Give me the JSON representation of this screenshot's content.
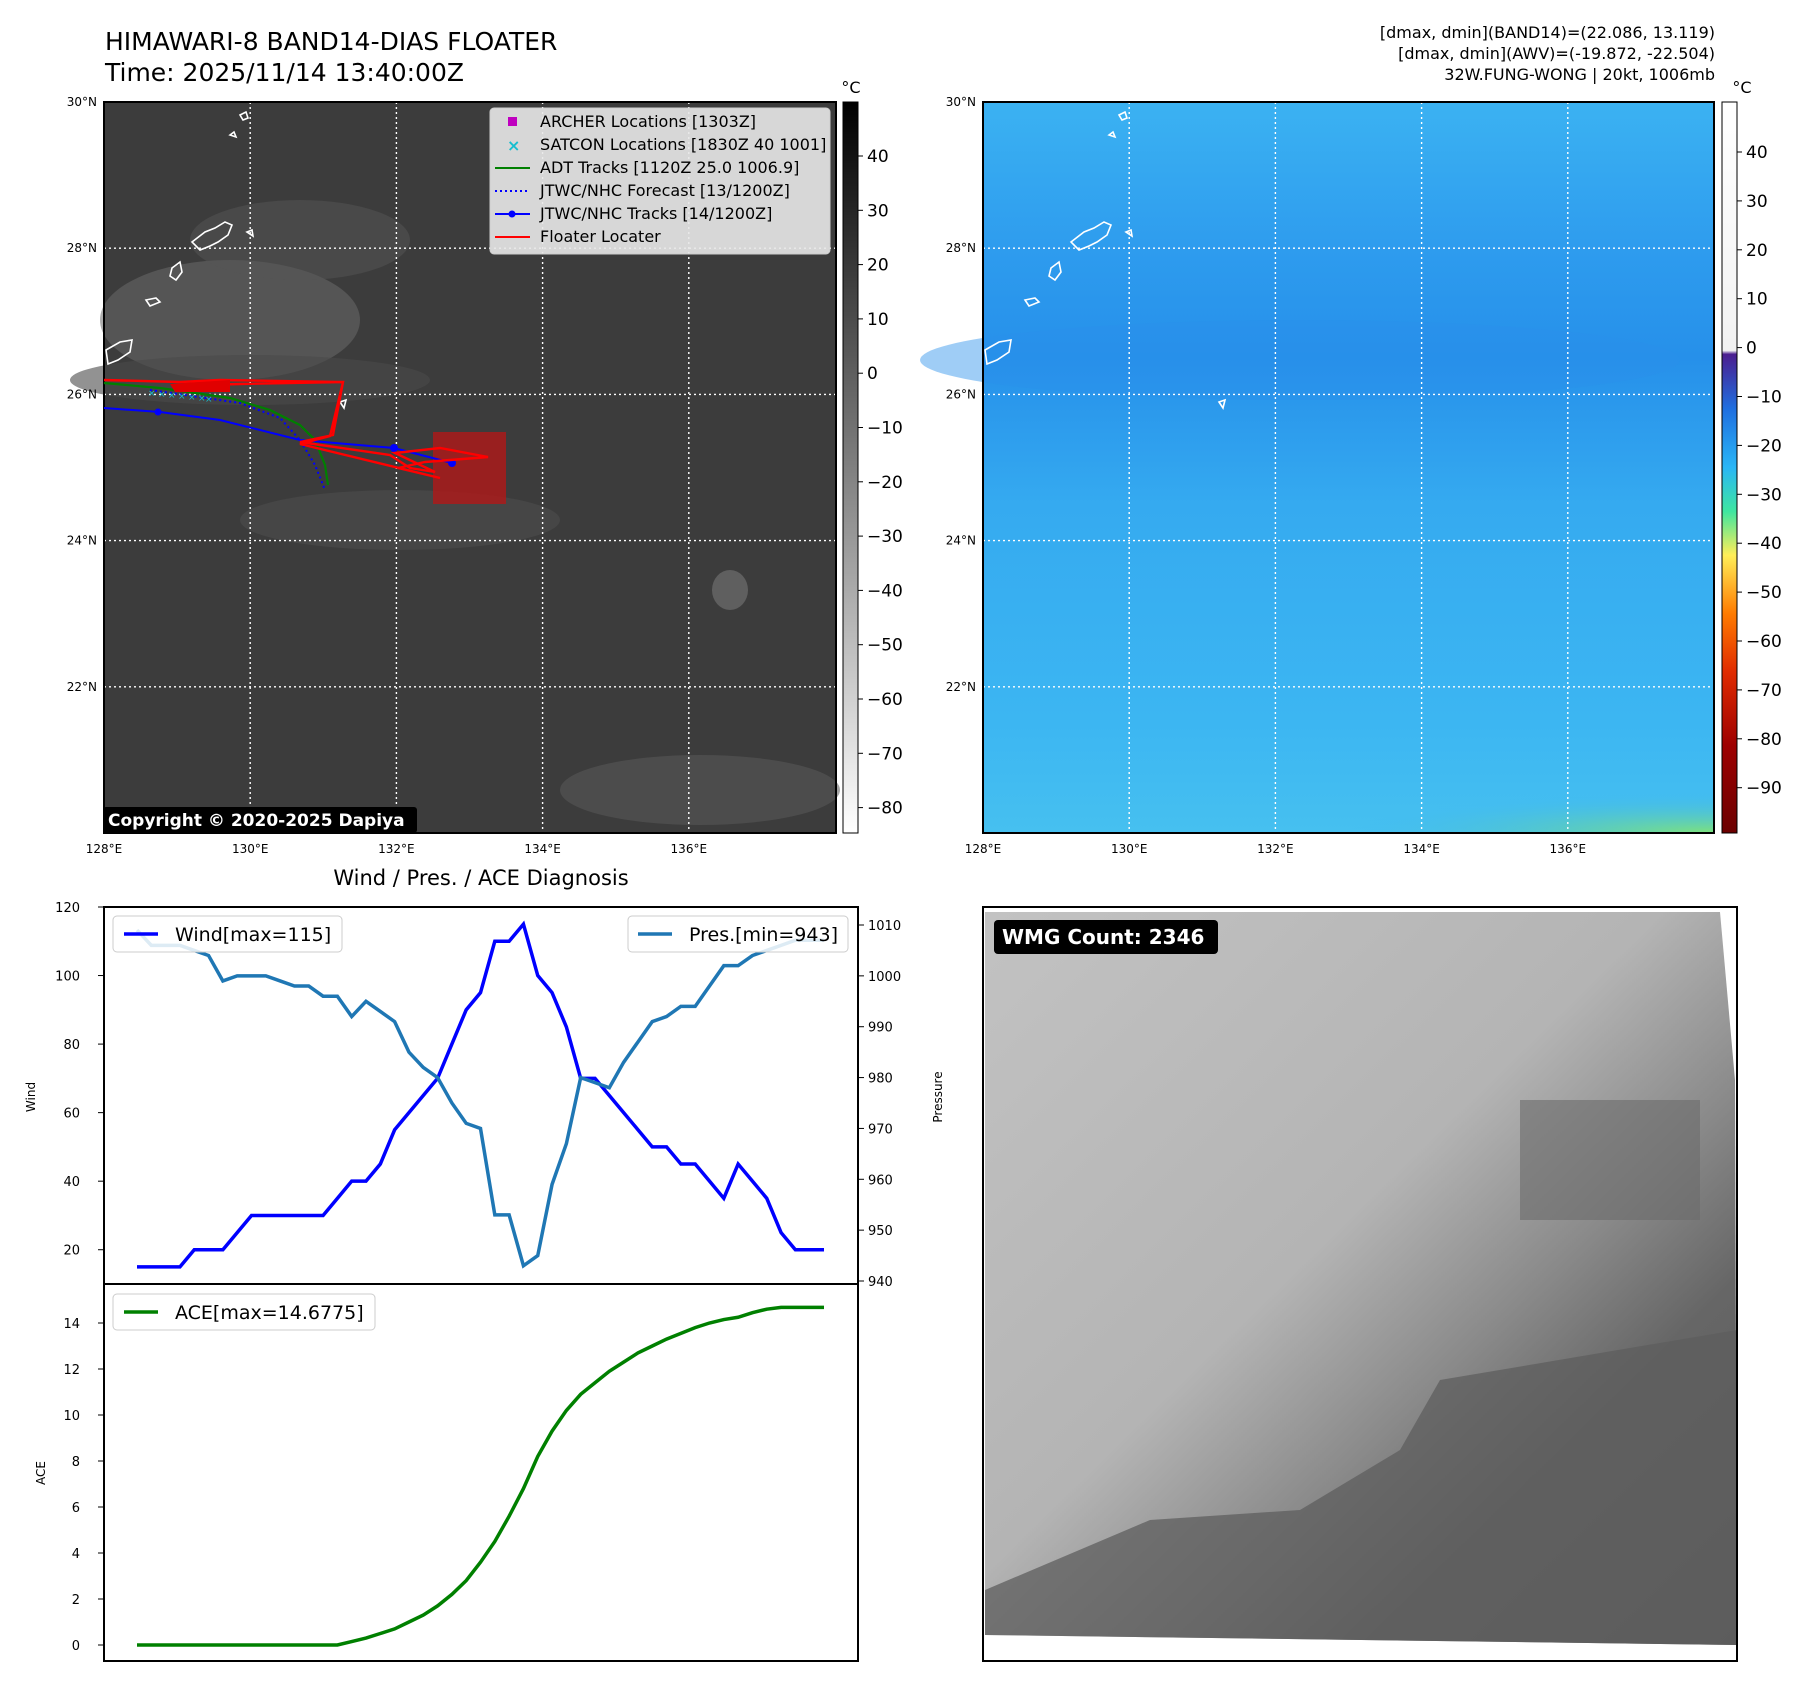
{
  "header": {
    "title_line1": "HIMAWARI-8 BAND14-DIAS FLOATER",
    "title_line2": "Time: 2025/11/14 13:40:00Z",
    "info_line1": "[dmax, dmin](BAND14)=(22.086, 13.119)",
    "info_line2": "[dmax, dmin](AWV)=(-19.872, -22.504)",
    "info_line3": "32W.FUNG-WONG | 20kt, 1006mb"
  },
  "maps": {
    "lat_labels": [
      "30°N",
      "28°N",
      "26°N",
      "24°N",
      "22°N"
    ],
    "lon_labels": [
      "128°E",
      "130°E",
      "132°E",
      "134°E",
      "136°E"
    ],
    "lat_range": [
      20,
      30
    ],
    "lon_range": [
      128,
      138
    ],
    "copyright": "Copyright © 2020-2025 Dapiya",
    "legend": [
      {
        "label": "ARCHER Locations [1303Z]",
        "color": "#bf00bf",
        "kind": "square"
      },
      {
        "label": "SATCON Locations [1830Z 40 1001]",
        "color": "#17becf",
        "kind": "x"
      },
      {
        "label": "ADT Tracks [1120Z 25.0 1006.9]",
        "color": "#008000",
        "kind": "line"
      },
      {
        "label": "JTWC/NHC Forecast [13/1200Z]",
        "color": "#0000ff",
        "kind": "dotted"
      },
      {
        "label": "JTWC/NHC Tracks [14/1200Z]",
        "color": "#0000ff",
        "kind": "line-dot"
      },
      {
        "label": "Floater Locater",
        "color": "#ff0000",
        "kind": "line"
      }
    ],
    "cbar_left": {
      "unit": "°C",
      "ticks": [
        "40",
        "30",
        "20",
        "10",
        "0",
        "−10",
        "−20",
        "−30",
        "−40",
        "−50",
        "−60",
        "−70",
        "−80"
      ]
    },
    "cbar_right": {
      "unit": "°C",
      "ticks": [
        "40",
        "30",
        "20",
        "10",
        "0",
        "−10",
        "−20",
        "−30",
        "−40",
        "−50",
        "−60",
        "−70",
        "−80",
        "−90"
      ]
    },
    "colors": {
      "ir_bg": "#3c3c3c",
      "awv_bg": "#3bb0f0",
      "awv_dark": "#2a90ea"
    }
  },
  "wmg": {
    "label": "WMG Count: 2346"
  },
  "chart_data": [
    {
      "type": "line",
      "title": "Wind / Pres. / ACE Diagnosis",
      "ylabel": "Wind",
      "ylabel_right": "Pressure",
      "ylim": [
        10,
        120
      ],
      "ylim_right": [
        940,
        1010
      ],
      "yticks": [
        "20",
        "40",
        "60",
        "80",
        "100",
        "120"
      ],
      "yticks_right": [
        "940",
        "950",
        "960",
        "970",
        "980",
        "990",
        "1000",
        "1010"
      ],
      "series": [
        {
          "name": "Wind[max=115]",
          "color": "#0000ff",
          "values": [
            15,
            15,
            15,
            15,
            20,
            20,
            20,
            25,
            30,
            30,
            30,
            30,
            30,
            30,
            35,
            40,
            40,
            45,
            55,
            60,
            65,
            70,
            80,
            90,
            95,
            110,
            110,
            115,
            100,
            95,
            85,
            70,
            70,
            65,
            60,
            55,
            50,
            50,
            45,
            45,
            40,
            35,
            45,
            40,
            35,
            25,
            20,
            20,
            20
          ]
        },
        {
          "name": "Pres.[min=943]",
          "color": "#1f77b4",
          "values": [
            1009,
            1006,
            1006,
            1006,
            1005,
            1004,
            999,
            1000,
            1000,
            1000,
            999,
            998,
            998,
            996,
            996,
            992,
            995,
            993,
            991,
            985,
            982,
            980,
            975,
            971,
            970,
            953,
            953,
            943,
            945,
            959,
            967,
            980,
            979,
            978,
            983,
            987,
            991,
            992,
            994,
            994,
            998,
            1002,
            1002,
            1004,
            1005,
            1006,
            1007,
            1007,
            1007
          ]
        }
      ]
    },
    {
      "type": "line",
      "ylabel": "ACE",
      "ylim": [
        0,
        15
      ],
      "yticks": [
        "0",
        "2",
        "4",
        "6",
        "8",
        "10",
        "12",
        "14"
      ],
      "series": [
        {
          "name": "ACE[max=14.6775]",
          "color": "#008000",
          "values": [
            0,
            0,
            0,
            0,
            0,
            0,
            0,
            0,
            0,
            0,
            0,
            0,
            0,
            0,
            0,
            0.15,
            0.3,
            0.5,
            0.7,
            1.0,
            1.3,
            1.7,
            2.2,
            2.8,
            3.6,
            4.5,
            5.6,
            6.8,
            8.2,
            9.3,
            10.2,
            10.9,
            11.4,
            11.9,
            12.3,
            12.7,
            13.0,
            13.3,
            13.55,
            13.8,
            14.0,
            14.15,
            14.25,
            14.45,
            14.6,
            14.6775,
            14.6775,
            14.6775,
            14.6775
          ]
        }
      ]
    }
  ]
}
